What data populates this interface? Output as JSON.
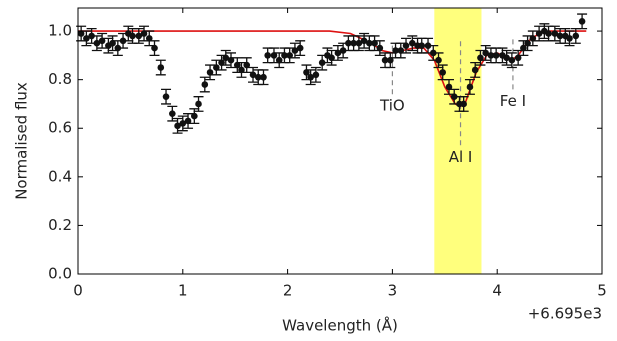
{
  "chart_data": {
    "type": "scatter",
    "xlabel": "Wavelength (Å)",
    "ylabel": "Normalised flux",
    "x_offset_label": "+6.695e3",
    "xlim": [
      0,
      5
    ],
    "ylim": [
      0,
      1.095
    ],
    "xticks": [
      0,
      1,
      2,
      3,
      4,
      5
    ],
    "yticks": [
      {
        "value": 0,
        "label": "0.0"
      },
      {
        "value": 0.2,
        "label": "0.2"
      },
      {
        "value": 0.4,
        "label": "0.4"
      },
      {
        "value": 0.6,
        "label": "0.6"
      },
      {
        "value": 0.8,
        "label": "0.8"
      },
      {
        "value": 1,
        "label": "1.0"
      }
    ],
    "color": "#111111",
    "x": [
      0.03,
      0.08,
      0.13,
      0.18,
      0.23,
      0.29,
      0.33,
      0.38,
      0.43,
      0.48,
      0.52,
      0.58,
      0.63,
      0.68,
      0.73,
      0.79,
      0.84,
      0.9,
      0.95,
      1.0,
      1.05,
      1.11,
      1.15,
      1.21,
      1.26,
      1.32,
      1.37,
      1.41,
      1.46,
      1.52,
      1.56,
      1.61,
      1.67,
      1.72,
      1.77,
      1.81,
      1.87,
      1.92,
      1.97,
      2.02,
      2.07,
      2.12,
      2.18,
      2.22,
      2.27,
      2.33,
      2.38,
      2.42,
      2.48,
      2.53,
      2.58,
      2.63,
      2.68,
      2.73,
      2.78,
      2.83,
      2.88,
      2.93,
      2.98,
      3.03,
      3.08,
      3.13,
      3.19,
      3.24,
      3.28,
      3.34,
      3.39,
      3.44,
      3.48,
      3.54,
      3.59,
      3.64,
      3.68,
      3.74,
      3.79,
      3.84,
      3.89,
      3.94,
      3.99,
      4.05,
      4.09,
      4.14,
      4.2,
      4.25,
      4.29,
      4.34,
      4.4,
      4.45,
      4.49,
      4.55,
      4.6,
      4.65,
      4.69,
      4.75,
      4.81
    ],
    "values": [
      0.99,
      0.97,
      0.98,
      0.95,
      0.96,
      0.94,
      0.95,
      0.93,
      0.96,
      0.99,
      0.98,
      0.98,
      0.99,
      0.97,
      0.93,
      0.85,
      0.73,
      0.66,
      0.61,
      0.62,
      0.63,
      0.65,
      0.7,
      0.78,
      0.83,
      0.85,
      0.87,
      0.89,
      0.88,
      0.86,
      0.84,
      0.86,
      0.82,
      0.81,
      0.81,
      0.9,
      0.9,
      0.88,
      0.9,
      0.9,
      0.92,
      0.93,
      0.83,
      0.81,
      0.82,
      0.87,
      0.9,
      0.89,
      0.91,
      0.92,
      0.95,
      0.95,
      0.95,
      0.96,
      0.95,
      0.95,
      0.93,
      0.88,
      0.88,
      0.92,
      0.92,
      0.94,
      0.95,
      0.94,
      0.94,
      0.94,
      0.91,
      0.88,
      0.83,
      0.77,
      0.73,
      0.7,
      0.7,
      0.77,
      0.84,
      0.89,
      0.91,
      0.9,
      0.9,
      0.9,
      0.89,
      0.88,
      0.89,
      0.93,
      0.95,
      0.97,
      0.99,
      1.0,
      0.99,
      0.99,
      0.98,
      0.98,
      0.97,
      0.98,
      1.04
    ],
    "errors": [
      0.03,
      0.03,
      0.03,
      0.03,
      0.03,
      0.03,
      0.03,
      0.03,
      0.03,
      0.03,
      0.03,
      0.03,
      0.03,
      0.03,
      0.03,
      0.03,
      0.03,
      0.03,
      0.03,
      0.03,
      0.03,
      0.03,
      0.03,
      0.03,
      0.03,
      0.03,
      0.03,
      0.03,
      0.03,
      0.03,
      0.03,
      0.03,
      0.03,
      0.03,
      0.03,
      0.03,
      0.03,
      0.03,
      0.03,
      0.03,
      0.03,
      0.03,
      0.03,
      0.03,
      0.03,
      0.03,
      0.03,
      0.03,
      0.03,
      0.03,
      0.03,
      0.03,
      0.03,
      0.03,
      0.03,
      0.03,
      0.03,
      0.03,
      0.03,
      0.03,
      0.03,
      0.03,
      0.03,
      0.03,
      0.03,
      0.03,
      0.03,
      0.03,
      0.03,
      0.03,
      0.03,
      0.03,
      0.03,
      0.03,
      0.03,
      0.03,
      0.03,
      0.03,
      0.03,
      0.03,
      0.03,
      0.03,
      0.03,
      0.03,
      0.03,
      0.03,
      0.03,
      0.03,
      0.03,
      0.03,
      0.03,
      0.03,
      0.03,
      0.03,
      0.03
    ],
    "model": {
      "color": "#dd1111",
      "x": [
        0,
        2.4,
        2.6,
        2.8,
        2.9,
        3.0,
        3.1,
        3.2,
        3.3,
        3.4,
        3.5,
        3.6,
        3.65,
        3.7,
        3.8,
        3.9,
        4.0,
        4.1,
        4.15,
        4.2,
        4.3,
        4.4,
        4.5,
        4.85
      ],
      "values": [
        1,
        1,
        0.99,
        0.95,
        0.92,
        0.91,
        0.92,
        0.93,
        0.93,
        0.88,
        0.77,
        0.7,
        0.69,
        0.71,
        0.83,
        0.9,
        0.91,
        0.89,
        0.885,
        0.9,
        0.96,
        0.99,
        1,
        1
      ]
    },
    "shaded_region": {
      "x": [
        3.4,
        3.85
      ],
      "color": "#ffff66"
    },
    "annotations": [
      {
        "text": "TiO",
        "x": 3.0,
        "y": [
          0.74,
          0.94
        ]
      },
      {
        "text": "Al I",
        "x": 3.65,
        "y": [
          0.53,
          0.97
        ]
      },
      {
        "text": "Fe I",
        "x": 4.15,
        "y": [
          0.76,
          0.98
        ]
      }
    ]
  }
}
